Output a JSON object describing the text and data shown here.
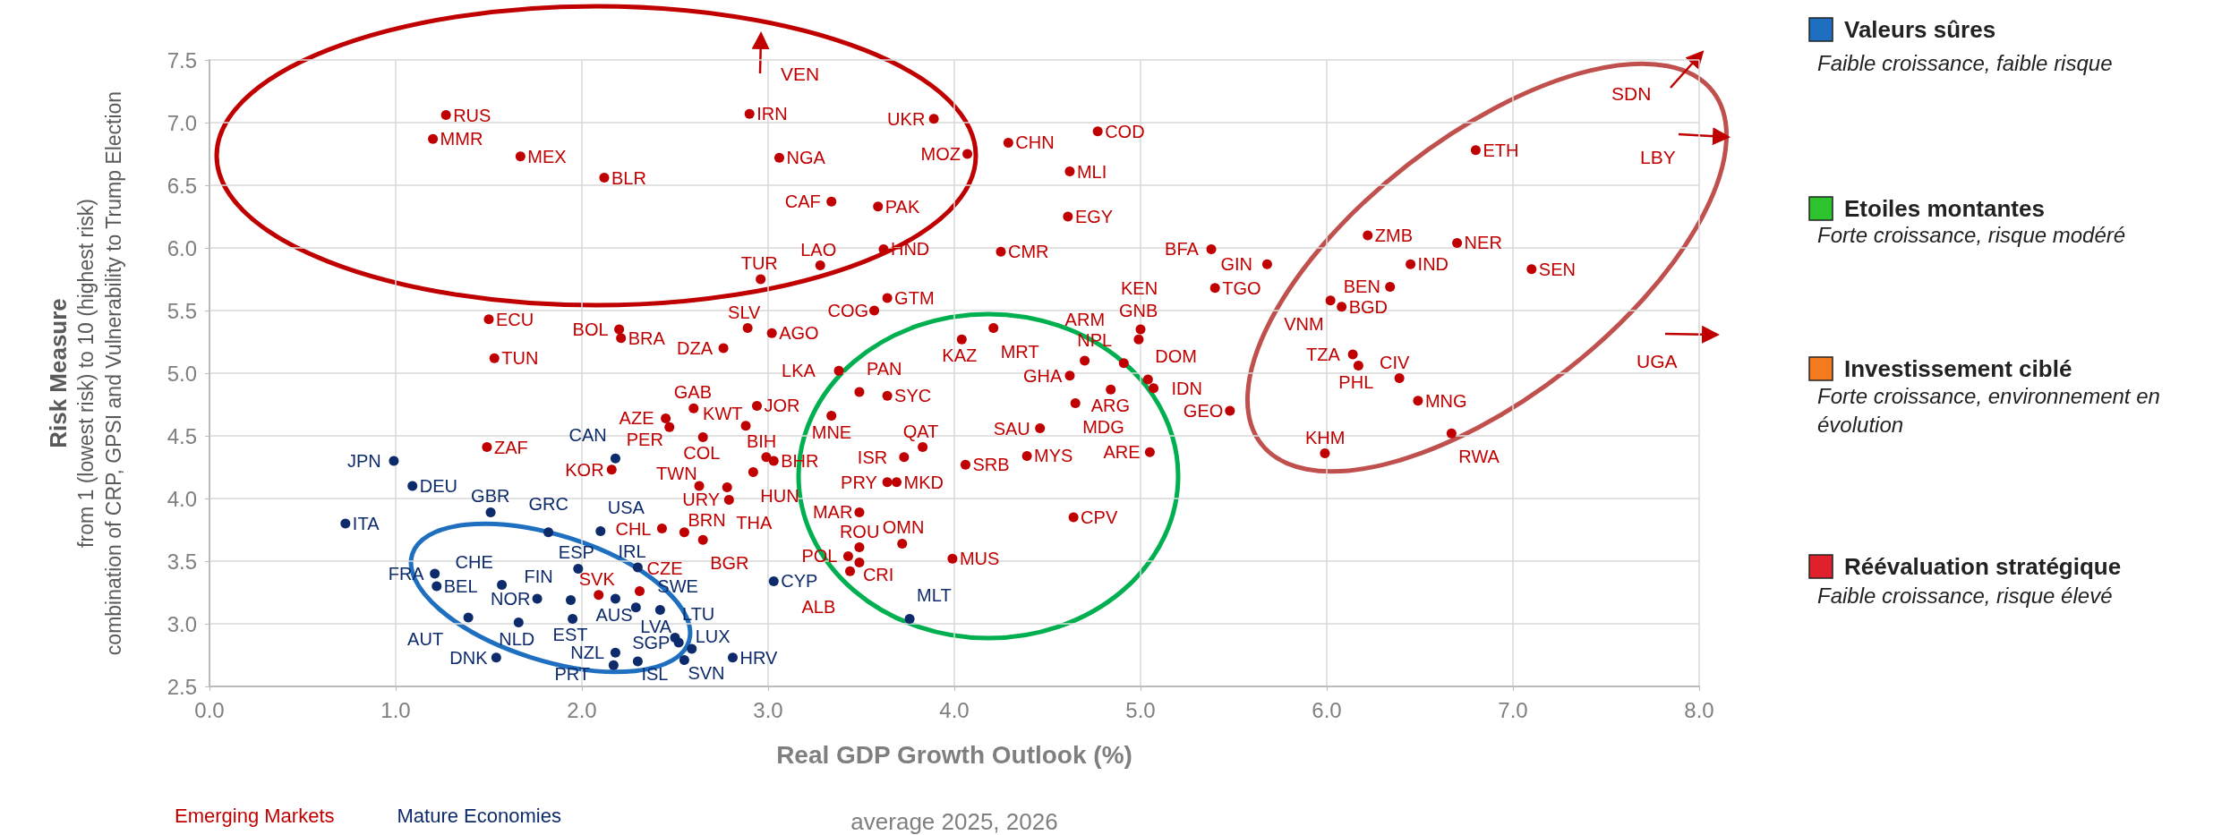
{
  "chart_data": {
    "type": "scatter",
    "xlabel": "Real GDP Growth Outlook (%)",
    "ylabel": "Risk Measure",
    "xlim": [
      0,
      8
    ],
    "xticks": [
      {
        "value": 0,
        "label": "0.0"
      },
      {
        "value": 1,
        "label": "1.0"
      },
      {
        "value": 2,
        "label": "2.0"
      },
      {
        "value": 3,
        "label": "3.0"
      },
      {
        "value": 4,
        "label": "4.0"
      },
      {
        "value": 5,
        "label": "5.0"
      },
      {
        "value": 6,
        "label": "6.0"
      },
      {
        "value": 7,
        "label": "7.0"
      },
      {
        "value": 8,
        "label": "8.0"
      }
    ],
    "ylim": [
      2.5,
      7.5
    ],
    "yticks": [
      2.5,
      {
        "value": 3,
        "label": "3.0"
      },
      3.5,
      {
        "value": 4,
        "label": "4.0"
      },
      4.5,
      {
        "value": 5,
        "label": "5.0"
      },
      5.5,
      {
        "value": 6,
        "label": "6.0"
      },
      6.5,
      {
        "value": 7,
        "label": "7.0"
      },
      7.5
    ],
    "grid": true,
    "legend": "bottom left",
    "marker": "circle",
    "annotations": [
      "average 2025, 2026",
      "from 1 (lowest risk) to 10 (highest risk)",
      "combination of CRP, GPSI and Vulnerability to Trump Election",
      "VEN",
      "SDN",
      "LBY",
      "UGA",
      "Valeurs sûres",
      "Faible croissance, faible risque",
      "Etoiles montantes",
      "Forte croissance, risque modéré",
      "Investissement ciblé",
      "Forte croissance, environnement en évolution",
      "Réévaluation stratégique",
      "Faible croissance, risque élevé"
    ],
    "series": [
      {
        "name": "Emerging Markets",
        "color": "#c00000",
        "x": [
          1.27,
          1.2,
          1.67,
          2.12,
          1.5,
          2.2,
          2.21,
          1.53,
          2.9,
          3.89,
          3.06,
          4.07,
          4.29,
          4.77,
          4.62,
          3.34,
          3.59,
          4.61,
          3.62,
          4.25,
          5.38,
          5.4,
          3.28,
          2.96,
          3.64,
          3.57,
          2.89,
          3.02,
          2.76,
          4.21,
          4.04,
          5.0,
          4.99,
          4.7,
          4.91,
          6.8,
          6.22,
          6.7,
          5.68,
          6.45,
          7.1,
          6.34,
          6.02,
          6.08,
          6.14,
          6.17,
          6.39,
          6.49,
          5.48,
          6.67,
          5.99,
          1.49,
          2.16,
          2.45,
          2.47,
          2.6,
          2.65,
          2.63,
          2.78,
          2.43,
          2.55,
          2.65,
          2.79,
          2.09,
          2.31,
          3.38,
          3.49,
          3.64,
          2.94,
          3.34,
          2.88,
          2.99,
          3.03,
          2.92,
          3.83,
          3.73,
          4.06,
          4.39,
          4.46,
          4.65,
          4.62,
          4.84,
          5.04,
          5.07,
          5.05,
          3.64,
          3.69,
          3.49,
          3.49,
          3.72,
          3.43,
          3.49,
          3.44,
          3.99,
          4.64
        ],
        "values": [
          7.06,
          6.87,
          6.73,
          6.56,
          5.43,
          5.35,
          5.28,
          5.12,
          7.07,
          7.03,
          6.72,
          6.75,
          6.84,
          6.93,
          6.61,
          6.37,
          6.33,
          6.25,
          5.99,
          5.97,
          5.99,
          5.68,
          5.86,
          5.75,
          5.6,
          5.5,
          5.36,
          5.32,
          5.2,
          5.36,
          5.27,
          5.35,
          5.27,
          5.1,
          5.08,
          6.78,
          6.1,
          6.04,
          5.87,
          5.87,
          5.83,
          5.69,
          5.58,
          5.53,
          5.15,
          5.06,
          4.96,
          4.78,
          4.7,
          4.52,
          4.36,
          4.41,
          4.23,
          4.64,
          4.57,
          4.72,
          4.49,
          4.1,
          4.09,
          3.76,
          3.73,
          3.67,
          3.99,
          3.23,
          3.26,
          5.02,
          4.85,
          4.82,
          4.74,
          4.66,
          4.58,
          4.33,
          4.3,
          4.21,
          4.41,
          4.33,
          4.27,
          4.34,
          4.56,
          4.76,
          4.98,
          4.87,
          4.95,
          4.88,
          4.37,
          4.13,
          4.13,
          3.89,
          3.61,
          3.64,
          3.54,
          3.49,
          3.42,
          3.52,
          3.85
        ],
        "value_labels": [
          "RUS",
          "MMR",
          "MEX",
          "BLR",
          "ECU",
          "BOL",
          "BRA",
          "TUN",
          "IRN",
          "UKR",
          "NGA",
          "MOZ",
          "CHN",
          "COD",
          "MLI",
          "CAF",
          "PAK",
          "EGY",
          "HND",
          "CMR",
          "BFA",
          "TGO",
          "LAO",
          "TUR",
          "GTM",
          "COG",
          "SLV",
          "AGO",
          "DZA",
          "MRT",
          "KAZ",
          "KEN",
          "GNB",
          "ARM",
          "NPL",
          "ETH",
          "ZMB",
          "NER",
          "GIN",
          "IND",
          "SEN",
          "BEN",
          "VNM",
          "BGD",
          "TZA",
          "PHL",
          "CIV",
          "MNG",
          "GEO",
          "RWA",
          "KHM",
          "ZAF",
          "KOR",
          "AZE",
          "PER",
          "GAB",
          "COL",
          "TWN",
          "THA",
          "CHL",
          "BRN",
          "BGR",
          "URY",
          "SVK",
          "CZE",
          "LKA",
          "PAN",
          "SYC",
          "JOR",
          "MNE",
          "KWT",
          "BIH",
          "BHR",
          "HUN",
          "QAT",
          "ISR",
          "SRB",
          "MYS",
          "SAU",
          "MDG",
          "GHA",
          "ARG",
          "DOM",
          "IDN",
          "ARE",
          "PRY",
          "MKD",
          "MAR",
          "ROU",
          "OMN",
          "POL",
          "CRI",
          "ALB",
          "MUS",
          "CPV"
        ]
      },
      {
        "name": "Mature Economies",
        "color": "#0d2a6b",
        "x": [
          0.99,
          1.09,
          0.73,
          2.18,
          1.51,
          1.82,
          2.1,
          1.98,
          2.3,
          1.21,
          1.22,
          1.57,
          1.76,
          1.94,
          2.18,
          1.39,
          1.66,
          1.95,
          2.29,
          2.42,
          2.5,
          2.52,
          2.59,
          2.81,
          2.55,
          2.3,
          2.17,
          2.18,
          1.54,
          3.03,
          3.76
        ],
        "values": [
          4.3,
          4.1,
          3.8,
          4.32,
          3.89,
          3.73,
          3.74,
          3.44,
          3.45,
          3.4,
          3.3,
          3.31,
          3.2,
          3.19,
          3.2,
          3.05,
          3.01,
          3.04,
          3.13,
          3.11,
          2.89,
          2.85,
          2.8,
          2.73,
          2.71,
          2.7,
          2.67,
          2.77,
          2.73,
          3.34,
          3.04
        ],
        "value_labels": [
          "JPN",
          "DEU",
          "ITA",
          "CAN",
          "GBR",
          "GRC",
          "USA",
          "ESP",
          "IRL",
          "FRA",
          "BEL",
          "CHE",
          "NOR",
          "FIN",
          "AUS",
          "AUT",
          "NLD",
          "EST",
          "SWE",
          "LVA",
          "LTU",
          "SGP",
          "LUX",
          "HRV",
          "SVN",
          "ISL",
          "NZL",
          "PRT",
          "DNK",
          "CYP",
          "MLT"
        ]
      }
    ]
  }
}
